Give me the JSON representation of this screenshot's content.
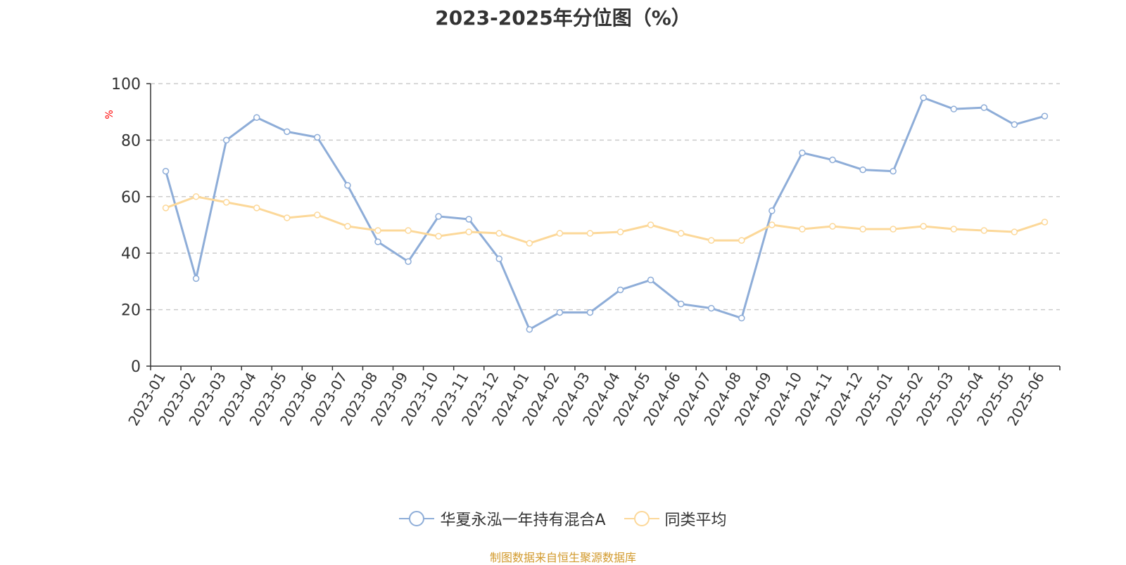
{
  "chart_data": {
    "type": "line",
    "title": "2023-2025年分位图（%）",
    "ylabel": "%",
    "xlabel": "",
    "ylim": [
      0,
      100
    ],
    "yticks": [
      0,
      20,
      40,
      60,
      80,
      100
    ],
    "grid": true,
    "legend_position": "bottom",
    "categories": [
      "2023-01",
      "2023-02",
      "2023-03",
      "2023-04",
      "2023-05",
      "2023-06",
      "2023-07",
      "2023-08",
      "2023-09",
      "2023-10",
      "2023-11",
      "2023-12",
      "2024-01",
      "2024-02",
      "2024-03",
      "2024-04",
      "2024-05",
      "2024-06",
      "2024-07",
      "2024-08",
      "2024-09",
      "2024-10",
      "2024-11",
      "2024-12",
      "2025-01",
      "2025-02",
      "2025-03",
      "2025-04",
      "2025-05",
      "2025-06"
    ],
    "series": [
      {
        "name": "华夏永泓一年持有混合A",
        "color": "#8eadd8",
        "values": [
          69,
          31,
          80,
          88,
          83,
          81,
          64,
          44,
          37,
          53,
          52,
          38,
          13,
          19,
          19,
          27,
          30.5,
          22,
          20.5,
          17,
          55,
          75.5,
          73,
          69.5,
          69,
          95,
          91,
          91.5,
          85.5,
          88.5
        ]
      },
      {
        "name": "同类平均",
        "color": "#fcd899",
        "values": [
          56,
          60,
          58,
          56,
          52.5,
          53.5,
          49.5,
          48,
          48,
          46,
          47.5,
          47,
          43.5,
          47,
          47,
          47.5,
          50,
          47,
          44.5,
          44.5,
          50,
          48.5,
          49.5,
          48.5,
          48.5,
          49.5,
          48.5,
          48,
          47.5,
          51
        ]
      }
    ]
  },
  "source_text": "制图数据来自恒生聚源数据库",
  "colors": {
    "axis": "#333333",
    "grid": "#cccccc",
    "ylabel": "#ff0000",
    "source": "#d29a2d"
  }
}
